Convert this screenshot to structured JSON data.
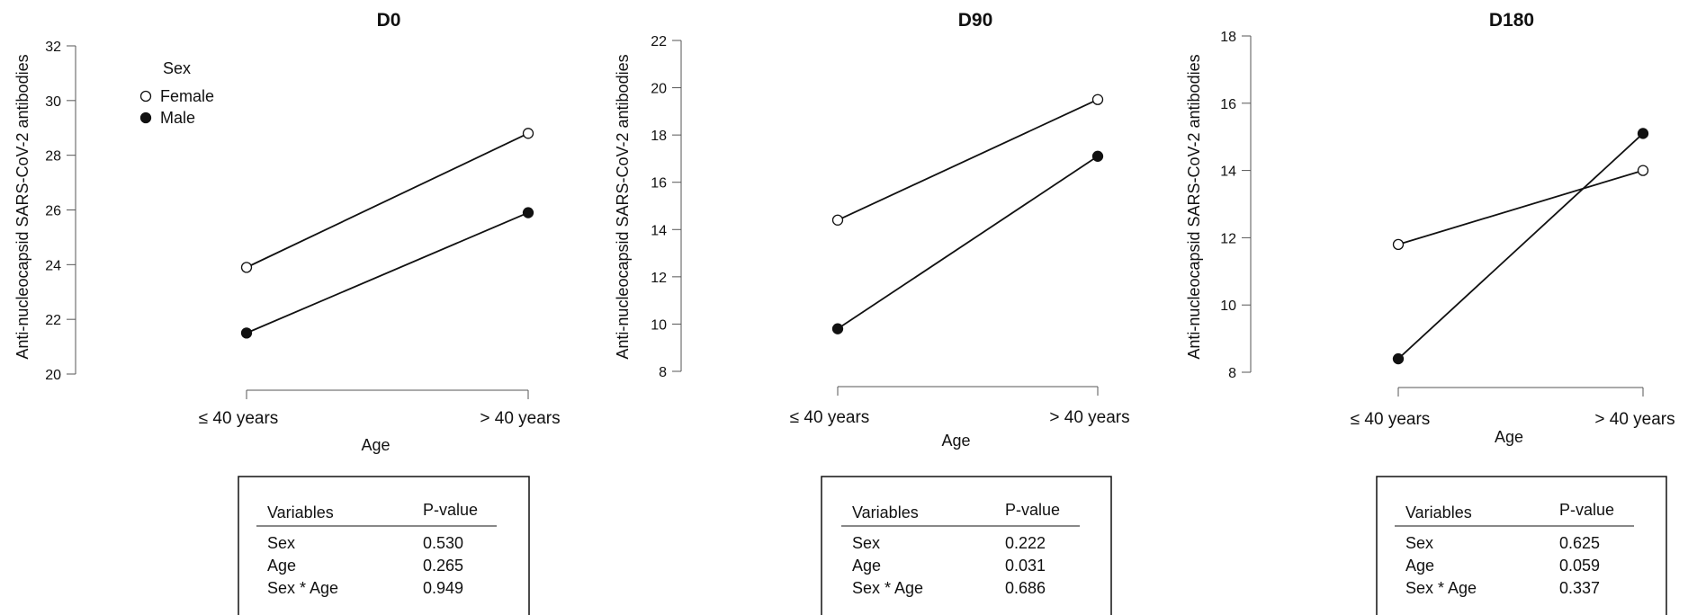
{
  "chart_data": [
    {
      "type": "line",
      "title": "D0",
      "xlabel": "Age",
      "ylabel": "Anti-nucleocapsid SARS-CoV-2 antibodies",
      "categories": [
        "≤ 40 years",
        "> 40 years"
      ],
      "ylim": [
        20,
        32
      ],
      "yticks": [
        20,
        22,
        24,
        26,
        28,
        30,
        32
      ],
      "series": [
        {
          "name": "Female",
          "marker": "open-circle",
          "values": [
            23.9,
            28.8
          ]
        },
        {
          "name": "Male",
          "marker": "filled-circle",
          "values": [
            21.5,
            25.9
          ]
        }
      ],
      "legend": {
        "title": "Sex",
        "placement": "top-left",
        "entries": [
          "Female",
          "Male"
        ]
      },
      "table": {
        "header": [
          "Variables",
          "P-value"
        ],
        "rows": [
          [
            "Sex",
            "0.530"
          ],
          [
            "Age",
            "0.265"
          ],
          [
            "Sex * Age",
            "0.949"
          ]
        ]
      }
    },
    {
      "type": "line",
      "title": "D90",
      "xlabel": "Age",
      "ylabel": "Anti-nucleocapsid SARS-CoV-2 antibodies",
      "categories": [
        "≤ 40 years",
        "> 40 years"
      ],
      "ylim": [
        8,
        22
      ],
      "yticks": [
        8,
        10,
        12,
        14,
        16,
        18,
        20,
        22
      ],
      "series": [
        {
          "name": "Female",
          "marker": "open-circle",
          "values": [
            14.4,
            19.5
          ]
        },
        {
          "name": "Male",
          "marker": "filled-circle",
          "values": [
            9.8,
            17.1
          ]
        }
      ],
      "table": {
        "header": [
          "Variables",
          "P-value"
        ],
        "rows": [
          [
            "Sex",
            "0.222"
          ],
          [
            "Age",
            "0.031"
          ],
          [
            "Sex * Age",
            "0.686"
          ]
        ]
      }
    },
    {
      "type": "line",
      "title": "D180",
      "xlabel": "Age",
      "ylabel": "Anti-nucleocapsid SARS-CoV-2 antibodies",
      "categories": [
        "≤ 40 years",
        "> 40 years"
      ],
      "ylim": [
        8,
        18
      ],
      "yticks": [
        8,
        10,
        12,
        14,
        16,
        18
      ],
      "series": [
        {
          "name": "Female",
          "marker": "open-circle",
          "values": [
            11.8,
            14.0
          ]
        },
        {
          "name": "Male",
          "marker": "filled-circle",
          "values": [
            8.4,
            15.1
          ]
        }
      ],
      "table": {
        "header": [
          "Variables",
          "P-value"
        ],
        "rows": [
          [
            "Sex",
            "0.625"
          ],
          [
            "Age",
            "0.059"
          ],
          [
            "Sex * Age",
            "0.337"
          ]
        ]
      }
    }
  ]
}
